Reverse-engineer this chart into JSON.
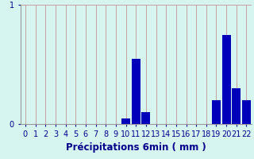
{
  "categories": [
    0,
    1,
    2,
    3,
    4,
    5,
    6,
    7,
    8,
    9,
    10,
    11,
    12,
    13,
    14,
    15,
    16,
    17,
    18,
    19,
    20,
    21,
    22
  ],
  "values": [
    0,
    0,
    0,
    0,
    0,
    0,
    0,
    0,
    0,
    0,
    0.05,
    0.55,
    0.1,
    0,
    0,
    0,
    0,
    0,
    0,
    0.2,
    0.75,
    0.3,
    0.2
  ],
  "bar_color": "#0000bb",
  "background_color": "#d6f5f0",
  "grid_color": "#c8a0a0",
  "xlabel": "Précipitations 6min ( mm )",
  "ylim": [
    0,
    1.0
  ],
  "xlim": [
    -0.5,
    22.5
  ],
  "yticks": [
    0,
    1
  ],
  "ytick_labels": [
    "0",
    "1"
  ],
  "xlabel_fontsize": 8.5,
  "tick_fontsize": 7,
  "bar_width": 0.85,
  "text_color": "#00008B"
}
